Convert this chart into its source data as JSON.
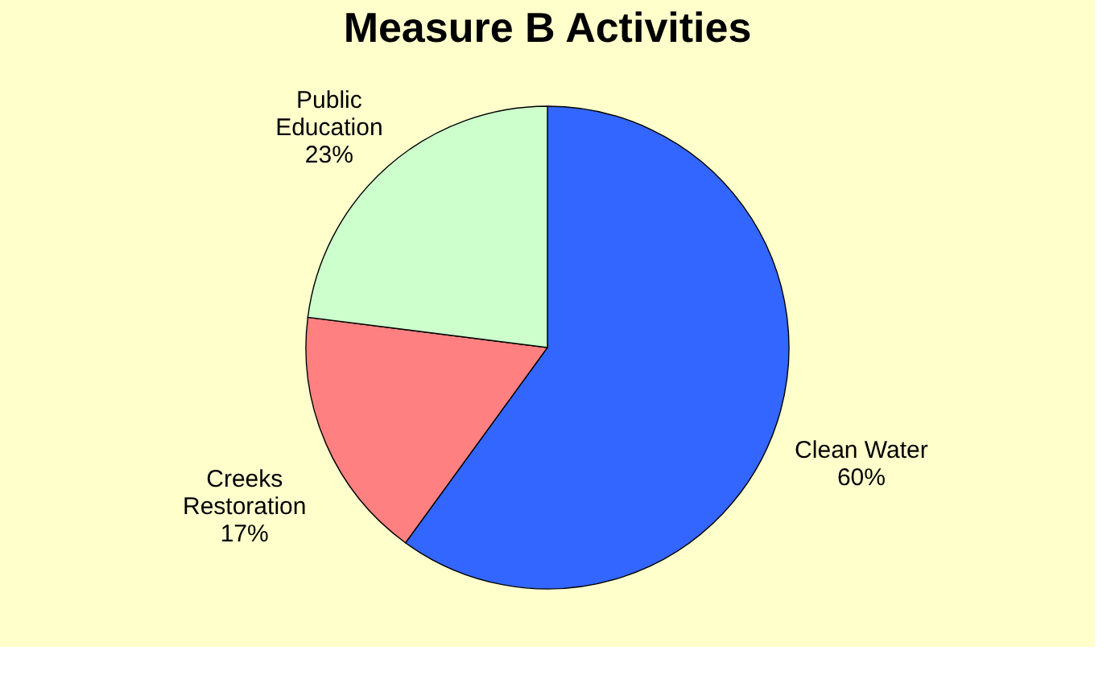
{
  "chart_data": {
    "type": "pie",
    "title": "Measure B Activities",
    "categories": [
      "Clean Water",
      "Creeks Restoration",
      "Public Education"
    ],
    "values": [
      60,
      17,
      23
    ],
    "value_labels": [
      "60%",
      "17%",
      "23%"
    ],
    "colors": [
      "#3366ff",
      "#ff8080",
      "#ccffcc"
    ]
  }
}
